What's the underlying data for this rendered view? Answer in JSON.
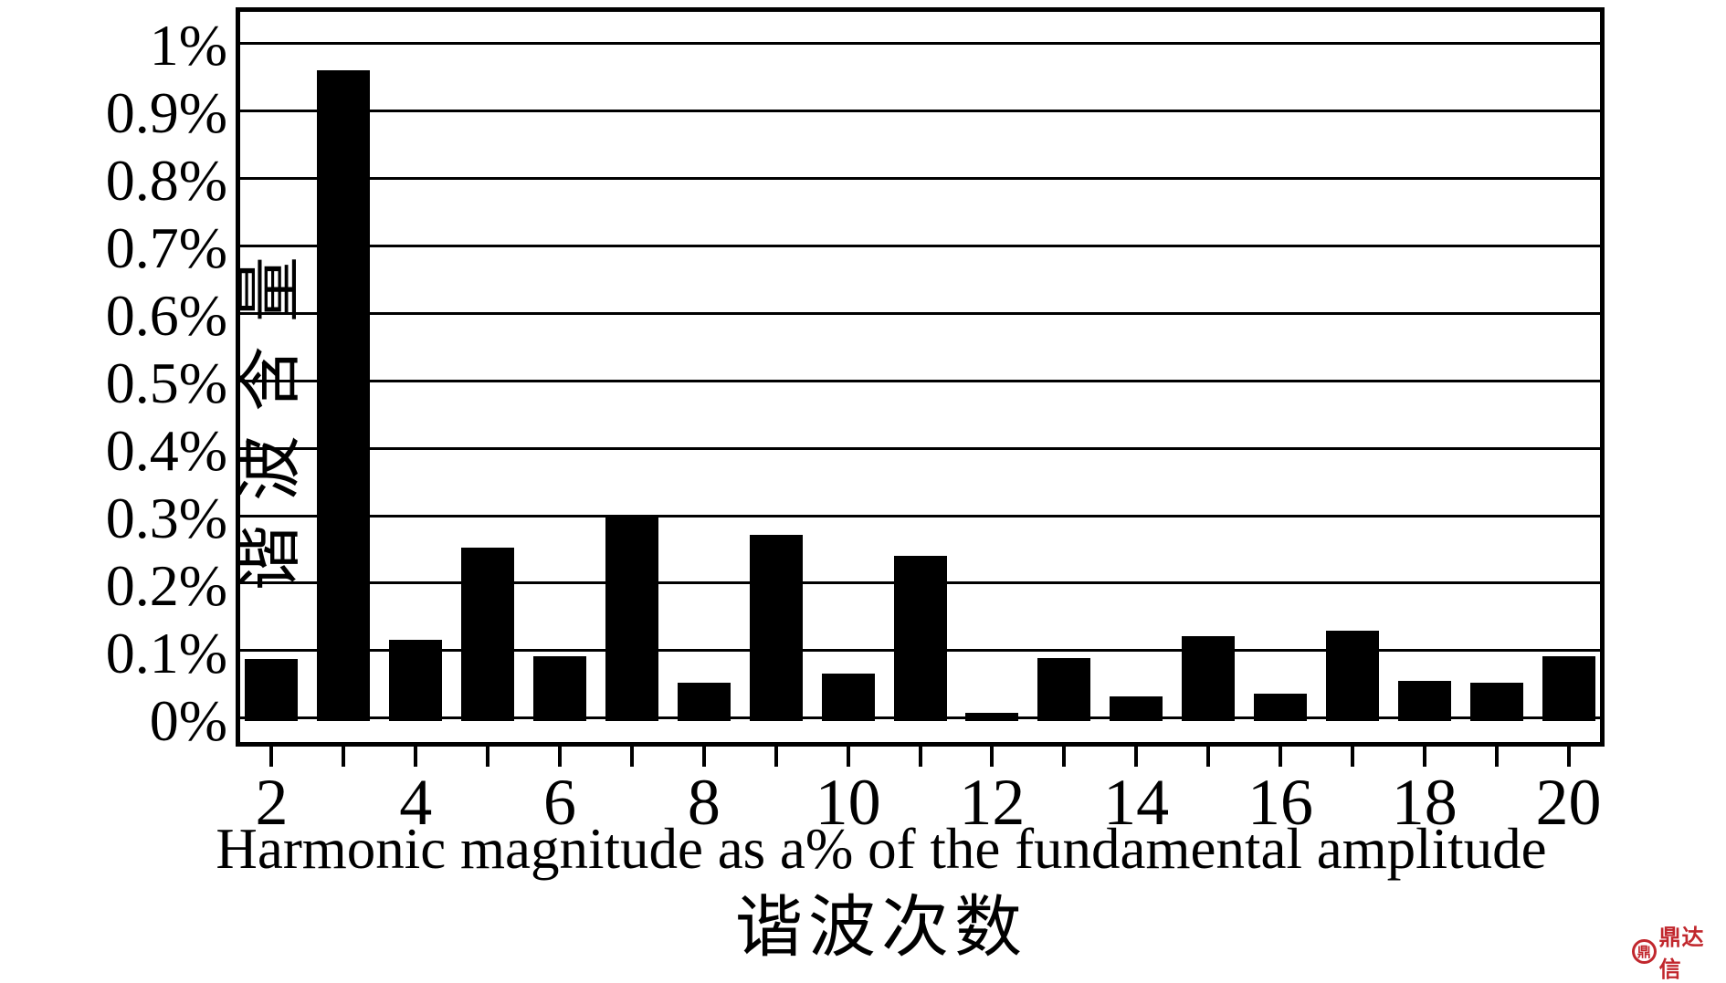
{
  "chart_data": {
    "type": "bar",
    "title": "Harmonic magnitude as a% of the fundamental amplitude",
    "xlabel": "谐波次数",
    "ylabel": "谐波含量",
    "categories": [
      2,
      3,
      4,
      5,
      6,
      7,
      8,
      9,
      10,
      11,
      12,
      13,
      14,
      15,
      16,
      17,
      18,
      19,
      20
    ],
    "values": [
      0.088,
      0.96,
      0.116,
      0.253,
      0.092,
      0.3,
      0.053,
      0.272,
      0.066,
      0.24,
      0.008,
      0.089,
      0.033,
      0.122,
      0.037,
      0.13,
      0.056,
      0.053,
      0.092
    ],
    "unit": "%",
    "y_ticks": {
      "values": [
        0,
        0.1,
        0.2,
        0.3,
        0.4,
        0.5,
        0.6,
        0.7,
        0.8,
        0.9,
        1.0
      ],
      "labels": [
        "0%",
        "0.1%",
        "0.2%",
        "0.3%",
        "0.4%",
        "0.5%",
        "0.6%",
        "0.7%",
        "0.8%",
        "0.9%",
        "1%"
      ]
    },
    "x_tick_labels": [
      "2",
      "4",
      "6",
      "8",
      "10",
      "12",
      "14",
      "16",
      "18",
      "20"
    ],
    "ylim": [
      -0.042,
      1.053
    ],
    "grid": true,
    "legend": null,
    "bar_color": "#000000",
    "background_color": "#ffffff"
  },
  "watermark": {
    "text": "鼎达信",
    "icon_glyph": "鼎",
    "color": "#c1272d"
  }
}
